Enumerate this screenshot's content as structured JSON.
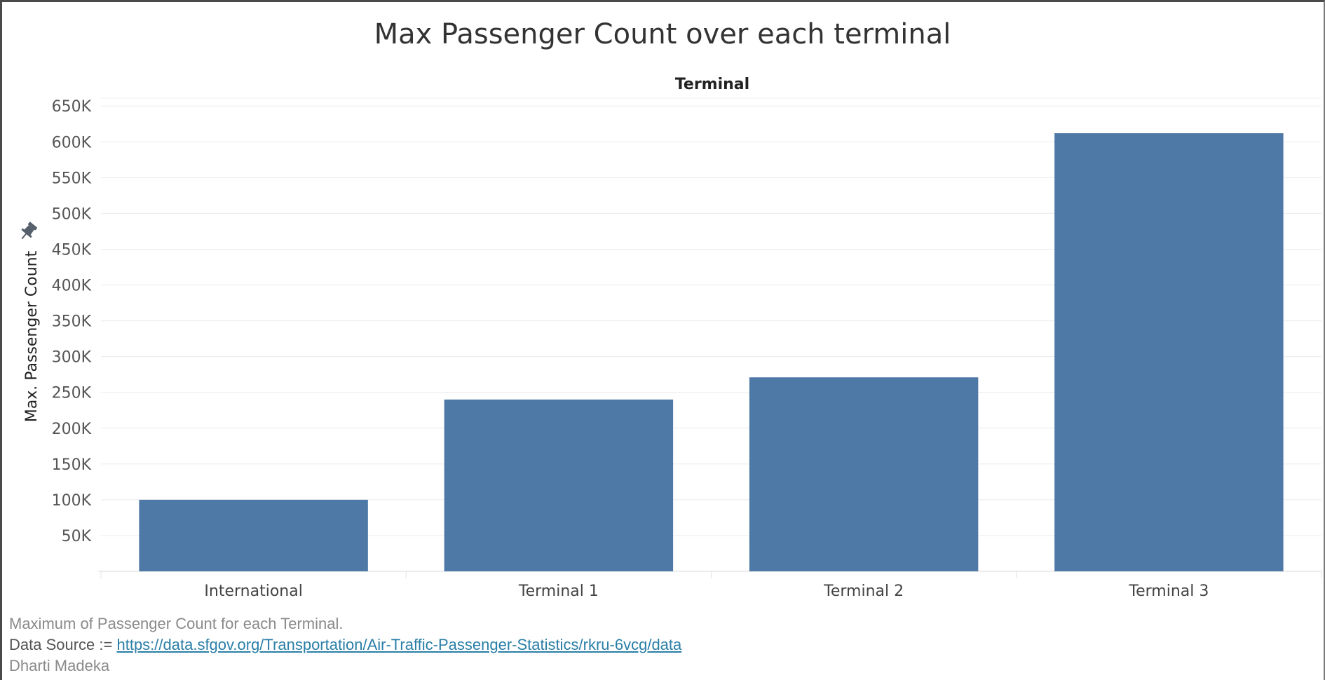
{
  "chart_data": {
    "type": "bar",
    "title": "Max Passenger Count over each terminal",
    "column_header": "Terminal",
    "categories": [
      "International",
      "Terminal 1",
      "Terminal 2",
      "Terminal 3"
    ],
    "values": [
      100000,
      240000,
      271000,
      612000
    ],
    "ylabel": "Max. Passenger Count",
    "xlabel": "",
    "ylim": [
      0,
      650000
    ],
    "yticks": [
      50000,
      100000,
      150000,
      200000,
      250000,
      300000,
      350000,
      400000,
      450000,
      500000,
      550000,
      600000,
      650000
    ],
    "ytick_labels": [
      "50K",
      "100K",
      "150K",
      "200K",
      "250K",
      "300K",
      "350K",
      "400K",
      "450K",
      "500K",
      "550K",
      "600K",
      "650K"
    ],
    "bar_color": "#4e79a7",
    "grid": true,
    "legend": "none"
  },
  "caption": {
    "description": "Maximum of Passenger Count for each Terminal.",
    "source_prefix": "Data Source := ",
    "source_link": "https://data.sfgov.org/Transportation/Air-Traffic-Passenger-Statistics/rkru-6vcg/data",
    "author": "Dharti Madeka"
  },
  "icons": {
    "axis_pin": "pin-icon"
  }
}
